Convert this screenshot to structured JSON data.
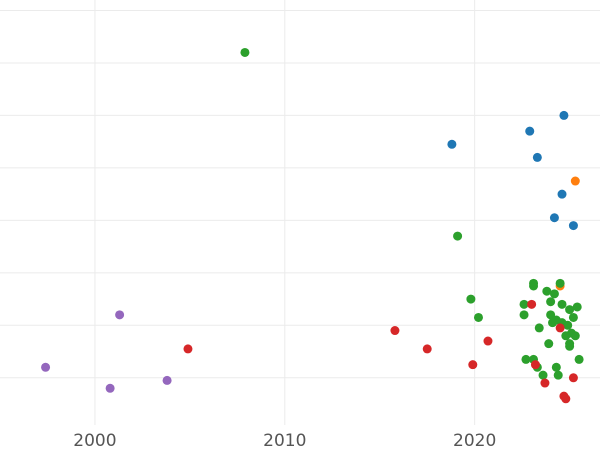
{
  "chart_data": {
    "type": "scatter",
    "title": "",
    "xlabel": "",
    "ylabel": "",
    "xlim": [
      1995.0,
      2026.6
    ],
    "ylim": [
      0,
      8.1
    ],
    "x_ticks": [
      2000,
      2010,
      2020
    ],
    "x_tick_labels": [
      "2000",
      "2010",
      "2020"
    ],
    "y_grid": [
      0.9,
      1.9,
      2.9,
      3.9,
      4.9,
      5.9,
      6.9,
      7.9
    ],
    "grid": true,
    "legend": "none",
    "series": [
      {
        "color": "#1f77b4",
        "points": [
          {
            "x": 2018.8,
            "y": 5.35
          },
          {
            "x": 2022.9,
            "y": 5.6
          },
          {
            "x": 2023.3,
            "y": 5.1
          },
          {
            "x": 2024.7,
            "y": 5.9
          },
          {
            "x": 2024.6,
            "y": 4.4
          },
          {
            "x": 2024.2,
            "y": 3.95
          },
          {
            "x": 2025.2,
            "y": 3.8
          }
        ]
      },
      {
        "color": "#ff7f0e",
        "points": [
          {
            "x": 2025.3,
            "y": 4.65
          },
          {
            "x": 2024.5,
            "y": 2.65
          }
        ]
      },
      {
        "color": "#2ca02c",
        "points": [
          {
            "x": 2007.9,
            "y": 7.1
          },
          {
            "x": 2019.1,
            "y": 3.6
          },
          {
            "x": 2019.8,
            "y": 2.4
          },
          {
            "x": 2020.2,
            "y": 2.05
          },
          {
            "x": 2022.6,
            "y": 2.3
          },
          {
            "x": 2022.6,
            "y": 2.1
          },
          {
            "x": 2023.1,
            "y": 2.7
          },
          {
            "x": 2023.1,
            "y": 2.65
          },
          {
            "x": 2023.8,
            "y": 2.55
          },
          {
            "x": 2024.0,
            "y": 2.35
          },
          {
            "x": 2024.2,
            "y": 2.5
          },
          {
            "x": 2024.5,
            "y": 2.7
          },
          {
            "x": 2024.6,
            "y": 2.3
          },
          {
            "x": 2025.0,
            "y": 2.2
          },
          {
            "x": 2025.4,
            "y": 2.25
          },
          {
            "x": 2025.2,
            "y": 2.05
          },
          {
            "x": 2024.0,
            "y": 2.1
          },
          {
            "x": 2024.3,
            "y": 2.0
          },
          {
            "x": 2024.1,
            "y": 1.95
          },
          {
            "x": 2024.6,
            "y": 1.95
          },
          {
            "x": 2023.4,
            "y": 1.85
          },
          {
            "x": 2024.9,
            "y": 1.9
          },
          {
            "x": 2025.1,
            "y": 1.75
          },
          {
            "x": 2024.8,
            "y": 1.7
          },
          {
            "x": 2025.3,
            "y": 1.7
          },
          {
            "x": 2025.0,
            "y": 1.55
          },
          {
            "x": 2025.0,
            "y": 1.5
          },
          {
            "x": 2023.9,
            "y": 1.55
          },
          {
            "x": 2022.7,
            "y": 1.25
          },
          {
            "x": 2023.1,
            "y": 1.25
          },
          {
            "x": 2025.5,
            "y": 1.25
          },
          {
            "x": 2023.3,
            "y": 1.1
          },
          {
            "x": 2024.3,
            "y": 1.1
          },
          {
            "x": 2023.6,
            "y": 0.95
          },
          {
            "x": 2024.4,
            "y": 0.95
          }
        ]
      },
      {
        "color": "#d62728",
        "points": [
          {
            "x": 2004.9,
            "y": 1.45
          },
          {
            "x": 2015.8,
            "y": 1.8
          },
          {
            "x": 2017.5,
            "y": 1.45
          },
          {
            "x": 2020.7,
            "y": 1.6
          },
          {
            "x": 2019.9,
            "y": 1.15
          },
          {
            "x": 2023.0,
            "y": 2.3
          },
          {
            "x": 2024.5,
            "y": 1.85
          },
          {
            "x": 2023.2,
            "y": 1.15
          },
          {
            "x": 2023.7,
            "y": 0.8
          },
          {
            "x": 2025.2,
            "y": 0.9
          },
          {
            "x": 2024.7,
            "y": 0.55
          },
          {
            "x": 2024.8,
            "y": 0.5
          }
        ]
      },
      {
        "color": "#9467bd",
        "points": [
          {
            "x": 1997.4,
            "y": 1.1
          },
          {
            "x": 2000.8,
            "y": 0.7
          },
          {
            "x": 2001.3,
            "y": 2.1
          },
          {
            "x": 2003.8,
            "y": 0.85
          }
        ]
      }
    ]
  }
}
